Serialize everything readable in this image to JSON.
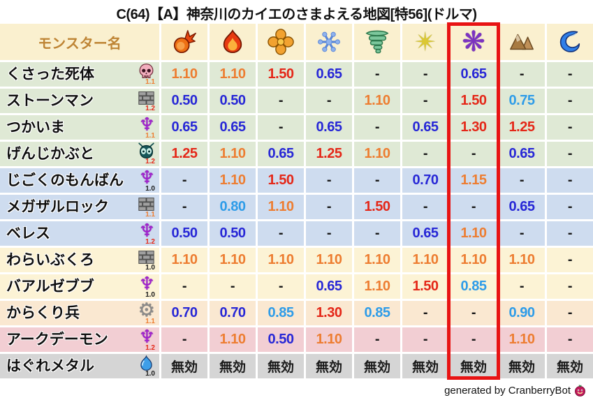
{
  "title": "C(64)【A】神奈川のカイエのさまよえる地図[特56](ドルマ)",
  "header": {
    "monster_name_label": "モンスター名"
  },
  "footer": {
    "credit": "generated by CranberryBot"
  },
  "colors": {
    "value_orange": "#ED7D31",
    "value_red": "#E42718",
    "value_blue": "#2727D6",
    "value_lightblue": "#2E9CE8",
    "value_black": "#1A1A1A",
    "header_bg": "#FAF0CF",
    "row_green": "#DFE9D5",
    "row_blue": "#CEDCEF",
    "row_yellow": "#FCF3D5",
    "row_tan": "#FAE8D1",
    "row_pink": "#F2CED3",
    "row_gray": "#D5D5D5",
    "highlight_red": "#E81313"
  },
  "chart_data": {
    "type": "table",
    "columns": [
      "fireball",
      "flame",
      "explosion",
      "snowflake",
      "tornado",
      "star",
      "pinwheel",
      "mountain",
      "wave"
    ],
    "highlight": {
      "column_index": 6,
      "note": "red box around pinwheel (dark) element column"
    },
    "rows": [
      {
        "name": "くさった死体",
        "family_icon": "skull-icon",
        "multiplier": "1.1",
        "multiplier_color": "orange",
        "row_color": "green",
        "values": [
          "1.10",
          "1.10",
          "1.50",
          "0.65",
          "-",
          "-",
          "0.65",
          "-",
          "-"
        ],
        "value_colors": [
          "orange",
          "orange",
          "red",
          "blue",
          "black",
          "black",
          "blue",
          "black",
          "black"
        ]
      },
      {
        "name": "ストーンマン",
        "family_icon": "brick-icon",
        "multiplier": "1.2",
        "multiplier_color": "red",
        "row_color": "green",
        "values": [
          "0.50",
          "0.50",
          "-",
          "-",
          "1.10",
          "-",
          "1.50",
          "0.75",
          "-"
        ],
        "value_colors": [
          "blue",
          "blue",
          "black",
          "black",
          "orange",
          "black",
          "red",
          "lblue",
          "black"
        ]
      },
      {
        "name": "つかいま",
        "family_icon": "demon-emblem-icon",
        "multiplier": "1.1",
        "multiplier_color": "orange",
        "row_color": "green",
        "values": [
          "0.65",
          "0.65",
          "-",
          "0.65",
          "-",
          "0.65",
          "1.30",
          "1.25",
          "-"
        ],
        "value_colors": [
          "blue",
          "blue",
          "black",
          "blue",
          "black",
          "blue",
          "red",
          "red",
          "black"
        ]
      },
      {
        "name": "げんじかぶと",
        "family_icon": "bug-icon",
        "multiplier": "1.2",
        "multiplier_color": "red",
        "row_color": "green",
        "values": [
          "1.25",
          "1.10",
          "0.65",
          "1.25",
          "1.10",
          "-",
          "-",
          "0.65",
          "-"
        ],
        "value_colors": [
          "red",
          "orange",
          "blue",
          "red",
          "orange",
          "black",
          "black",
          "blue",
          "black"
        ]
      },
      {
        "name": "じごくのもんばん",
        "family_icon": "demon-emblem-icon",
        "multiplier": "1.0",
        "multiplier_color": "black",
        "row_color": "blue",
        "values": [
          "-",
          "1.10",
          "1.50",
          "-",
          "-",
          "0.70",
          "1.15",
          "-",
          "-"
        ],
        "value_colors": [
          "black",
          "orange",
          "red",
          "black",
          "black",
          "blue",
          "orange",
          "black",
          "black"
        ]
      },
      {
        "name": "メガザルロック",
        "family_icon": "brick-icon",
        "multiplier": "1.1",
        "multiplier_color": "orange",
        "row_color": "blue",
        "values": [
          "-",
          "0.80",
          "1.10",
          "-",
          "1.50",
          "-",
          "-",
          "0.65",
          "-"
        ],
        "value_colors": [
          "black",
          "lblue",
          "orange",
          "black",
          "red",
          "black",
          "black",
          "blue",
          "black"
        ]
      },
      {
        "name": "ベレス",
        "family_icon": "demon-emblem-icon",
        "multiplier": "1.2",
        "multiplier_color": "red",
        "row_color": "blue",
        "values": [
          "0.50",
          "0.50",
          "-",
          "-",
          "-",
          "0.65",
          "1.10",
          "-",
          "-"
        ],
        "value_colors": [
          "blue",
          "blue",
          "black",
          "black",
          "black",
          "blue",
          "orange",
          "black",
          "black"
        ]
      },
      {
        "name": "わらいぶくろ",
        "family_icon": "brick-icon",
        "multiplier": "1.0",
        "multiplier_color": "black",
        "row_color": "yellow",
        "values": [
          "1.10",
          "1.10",
          "1.10",
          "1.10",
          "1.10",
          "1.10",
          "1.10",
          "1.10",
          "-"
        ],
        "value_colors": [
          "orange",
          "orange",
          "orange",
          "orange",
          "orange",
          "orange",
          "orange",
          "orange",
          "black"
        ]
      },
      {
        "name": "バアルゼブブ",
        "family_icon": "demon-emblem-icon",
        "multiplier": "1.0",
        "multiplier_color": "black",
        "row_color": "yellow",
        "values": [
          "-",
          "-",
          "-",
          "0.65",
          "1.10",
          "1.50",
          "0.85",
          "-",
          "-"
        ],
        "value_colors": [
          "black",
          "black",
          "black",
          "blue",
          "orange",
          "red",
          "lblue",
          "black",
          "black"
        ]
      },
      {
        "name": "からくり兵",
        "family_icon": "gear-icon",
        "multiplier": "1.1",
        "multiplier_color": "orange",
        "row_color": "tan",
        "values": [
          "0.70",
          "0.70",
          "0.85",
          "1.30",
          "0.85",
          "-",
          "-",
          "0.90",
          "-"
        ],
        "value_colors": [
          "blue",
          "blue",
          "lblue",
          "red",
          "lblue",
          "black",
          "black",
          "lblue",
          "black"
        ]
      },
      {
        "name": "アークデーモン",
        "family_icon": "demon-emblem-icon",
        "multiplier": "1.2",
        "multiplier_color": "red",
        "row_color": "pink",
        "values": [
          "-",
          "1.10",
          "0.50",
          "1.10",
          "-",
          "-",
          "-",
          "1.10",
          "-"
        ],
        "value_colors": [
          "black",
          "orange",
          "blue",
          "orange",
          "black",
          "black",
          "black",
          "orange",
          "black"
        ]
      },
      {
        "name": "はぐれメタル",
        "family_icon": "slime-icon",
        "multiplier": "1.0",
        "multiplier_color": "black",
        "row_color": "gray",
        "values": [
          "無効",
          "無効",
          "無効",
          "無効",
          "無効",
          "無効",
          "無効",
          "無効",
          "無効"
        ],
        "value_colors": [
          "black",
          "black",
          "black",
          "black",
          "black",
          "black",
          "black",
          "black",
          "black"
        ]
      }
    ]
  }
}
